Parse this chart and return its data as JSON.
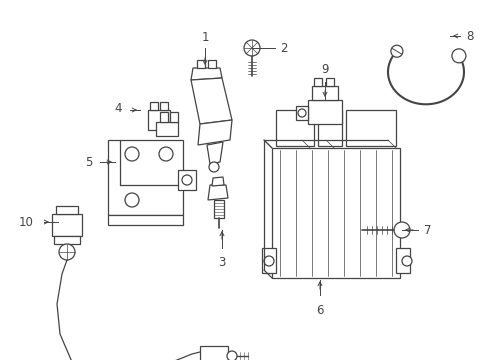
{
  "bg_color": "#ffffff",
  "line_color": "#444444",
  "label_color": "#000000",
  "fig_width": 4.89,
  "fig_height": 3.6,
  "dpi": 100,
  "label_fontsize": 8.5,
  "line_width": 0.9
}
